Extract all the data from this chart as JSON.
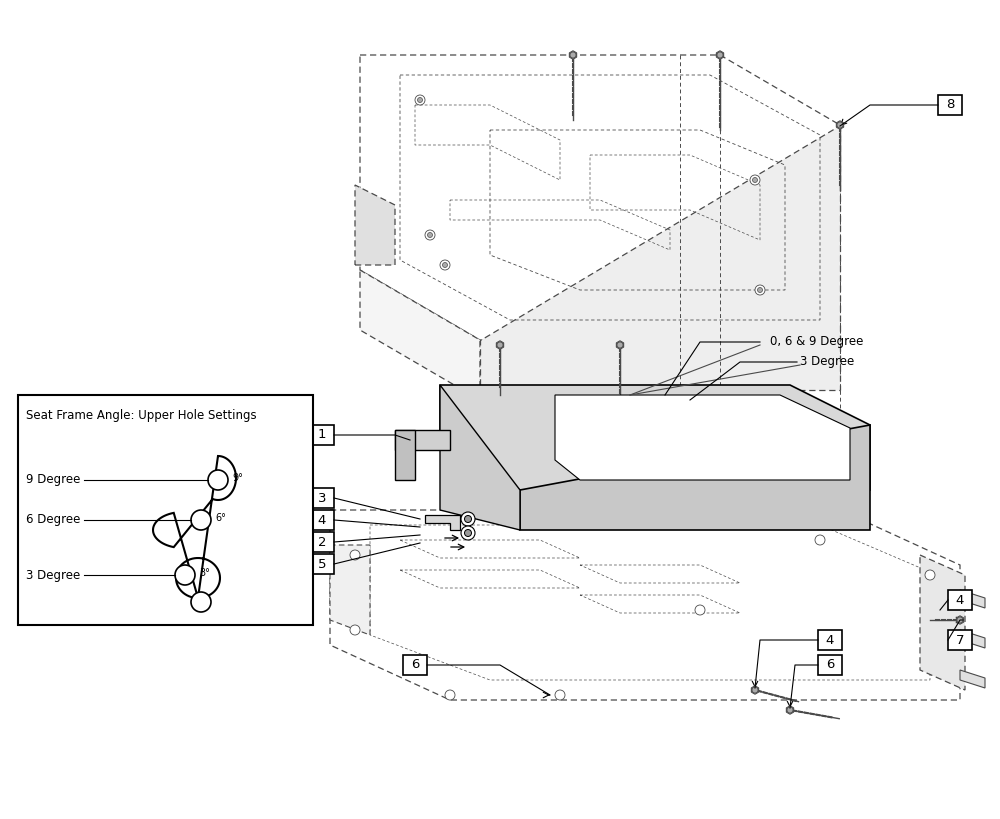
{
  "bg_color": "#ffffff",
  "line_color": "#4a4a4a",
  "dash_color": "#5a5a5a",
  "text_color": "#000000",
  "inset_title": "Seat Frame Angle: Upper Hole Settings",
  "degree_label_1": "0, 6 & 9 Degree",
  "degree_label_2": "3 Degree",
  "part_nums": [
    "1",
    "2",
    "3",
    "4",
    "5",
    "6",
    "7",
    "8"
  ]
}
